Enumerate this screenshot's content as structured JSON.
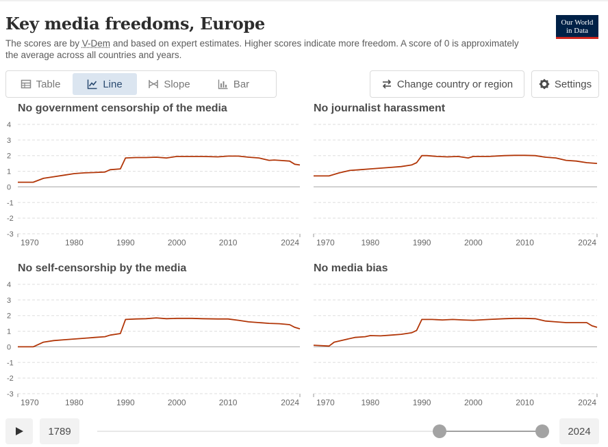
{
  "header": {
    "title": "Key media freedoms, Europe",
    "subtitle_pre": "The scores are by ",
    "subtitle_link": "V-Dem",
    "subtitle_post": " and based on expert estimates. Higher scores indicate more freedom. A score of 0 is approximately the average across all countries and years.",
    "logo_line1": "Our World",
    "logo_line2": "in Data"
  },
  "tabs": [
    {
      "label": "Table",
      "icon": "table-icon"
    },
    {
      "label": "Line",
      "icon": "line-chart-icon",
      "active": true
    },
    {
      "label": "Slope",
      "icon": "slope-chart-icon"
    },
    {
      "label": "Bar",
      "icon": "bar-chart-icon"
    }
  ],
  "actions": {
    "change_region": "Change country or region",
    "settings": "Settings"
  },
  "timeline": {
    "start_year": "1789",
    "end_year": "2024"
  },
  "colors": {
    "series": "#b13507",
    "grid": "#dddddd",
    "zero": "#a6a6a6"
  },
  "chart_data": [
    {
      "type": "line",
      "title": "No government censorship of the media",
      "ylim": [
        -3,
        4
      ],
      "yticks": [
        "4",
        "3",
        "2",
        "1",
        "0",
        "-1",
        "-2",
        "-3"
      ],
      "xticks": [
        "1970",
        "1980",
        "1990",
        "2000",
        "2010",
        "2024"
      ],
      "xlim": [
        1969,
        2024
      ],
      "x": [
        1969,
        1972,
        1974,
        1976,
        1978,
        1980,
        1982,
        1984,
        1986,
        1987,
        1989,
        1990,
        1992,
        1994,
        1996,
        1998,
        2000,
        2003,
        2005,
        2008,
        2010,
        2012,
        2014,
        2016,
        2018,
        2019,
        2020,
        2022,
        2023,
        2024
      ],
      "values": [
        0.3,
        0.3,
        0.55,
        0.65,
        0.75,
        0.85,
        0.9,
        0.92,
        0.95,
        1.1,
        1.15,
        1.85,
        1.88,
        1.88,
        1.9,
        1.85,
        1.95,
        1.95,
        1.95,
        1.92,
        1.97,
        1.97,
        1.9,
        1.85,
        1.7,
        1.72,
        1.7,
        1.65,
        1.45,
        1.4
      ]
    },
    {
      "type": "line",
      "title": "No journalist harassment",
      "ylim": [
        -3,
        4
      ],
      "yticks": [],
      "xticks": [
        "1970",
        "1980",
        "1990",
        "2000",
        "2010",
        "2024"
      ],
      "xlim": [
        1969,
        2024
      ],
      "x": [
        1969,
        1972,
        1974,
        1976,
        1978,
        1980,
        1982,
        1984,
        1986,
        1988,
        1989,
        1990,
        1991,
        1993,
        1995,
        1997,
        1999,
        2000,
        2003,
        2006,
        2008,
        2010,
        2012,
        2014,
        2016,
        2018,
        2020,
        2022,
        2024
      ],
      "values": [
        0.7,
        0.7,
        0.9,
        1.05,
        1.1,
        1.15,
        1.2,
        1.25,
        1.3,
        1.4,
        1.55,
        2.0,
        2.0,
        1.95,
        1.92,
        1.95,
        1.85,
        1.95,
        1.95,
        2.0,
        2.02,
        2.02,
        2.0,
        1.9,
        1.85,
        1.7,
        1.65,
        1.55,
        1.5
      ]
    },
    {
      "type": "line",
      "title": "No self-censorship by the media",
      "ylim": [
        -3,
        4
      ],
      "yticks": [
        "4",
        "3",
        "2",
        "1",
        "0",
        "-1",
        "-2",
        "-3"
      ],
      "xticks": [
        "1970",
        "1980",
        "1990",
        "2000",
        "2010",
        "2024"
      ],
      "xlim": [
        1969,
        2024
      ],
      "x": [
        1969,
        1972,
        1974,
        1976,
        1978,
        1980,
        1982,
        1984,
        1986,
        1987,
        1989,
        1990,
        1992,
        1994,
        1996,
        1998,
        2000,
        2003,
        2005,
        2008,
        2010,
        2012,
        2014,
        2016,
        2018,
        2020,
        2022,
        2023,
        2024
      ],
      "values": [
        0.0,
        0.0,
        0.3,
        0.4,
        0.45,
        0.5,
        0.55,
        0.6,
        0.65,
        0.75,
        0.85,
        1.75,
        1.78,
        1.8,
        1.85,
        1.8,
        1.82,
        1.82,
        1.8,
        1.78,
        1.78,
        1.7,
        1.6,
        1.55,
        1.5,
        1.48,
        1.42,
        1.25,
        1.15
      ]
    },
    {
      "type": "line",
      "title": "No media bias",
      "ylim": [
        -3,
        4
      ],
      "yticks": [],
      "xticks": [
        "1970",
        "1980",
        "1990",
        "2000",
        "2010",
        "2024"
      ],
      "xlim": [
        1969,
        2024
      ],
      "x": [
        1969,
        1972,
        1973,
        1975,
        1977,
        1979,
        1980,
        1982,
        1984,
        1986,
        1988,
        1989,
        1990,
        1992,
        1994,
        1996,
        1998,
        2000,
        2003,
        2006,
        2008,
        2010,
        2012,
        2014,
        2016,
        2018,
        2020,
        2022,
        2023,
        2024
      ],
      "values": [
        0.1,
        0.05,
        0.3,
        0.45,
        0.6,
        0.65,
        0.72,
        0.7,
        0.75,
        0.8,
        0.9,
        1.05,
        1.75,
        1.75,
        1.72,
        1.75,
        1.72,
        1.7,
        1.75,
        1.8,
        1.82,
        1.82,
        1.8,
        1.65,
        1.6,
        1.55,
        1.55,
        1.55,
        1.35,
        1.25
      ]
    }
  ]
}
